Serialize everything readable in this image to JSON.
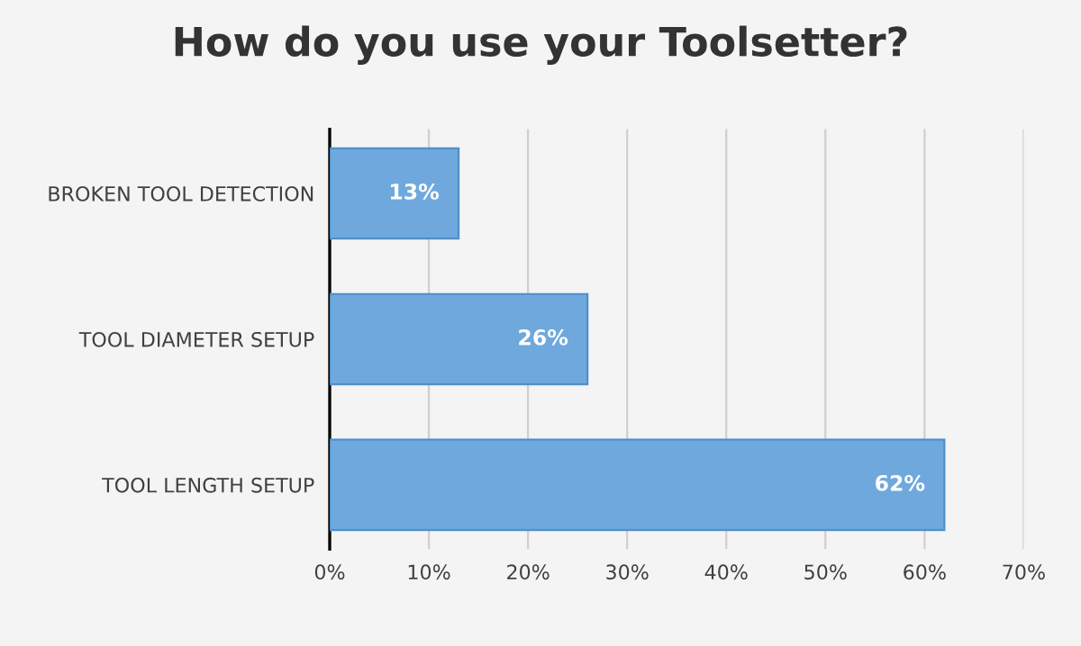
{
  "chart_data": {
    "type": "bar",
    "orientation": "horizontal",
    "title": "How do you use your Toolsetter?",
    "categories": [
      "BROKEN TOOL DETECTION",
      "TOOL DIAMETER SETUP",
      "TOOL LENGTH SETUP"
    ],
    "values": [
      13,
      26,
      62
    ],
    "color": "#6fa8dc",
    "value_labels": [
      "13%",
      "26%",
      "62%"
    ],
    "xlim": [
      0,
      70
    ],
    "xticks": [
      {
        "value": 0,
        "label": "0%"
      },
      {
        "value": 10,
        "label": "10%"
      },
      {
        "value": 20,
        "label": "20%"
      },
      {
        "value": 30,
        "label": "30%"
      },
      {
        "value": 40,
        "label": "40%"
      },
      {
        "value": 50,
        "label": "50%"
      },
      {
        "value": 60,
        "label": "60%"
      },
      {
        "value": 70,
        "label": "70%"
      }
    ],
    "grid": "x",
    "legend": false
  }
}
